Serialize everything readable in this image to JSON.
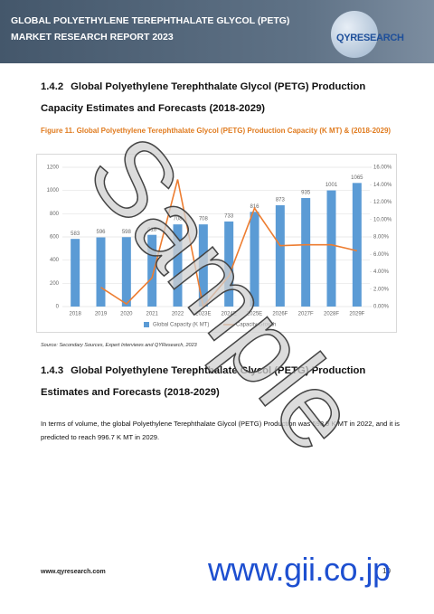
{
  "header": {
    "title": "GLOBAL POLYETHYLENE TEREPHTHALATE GLYCOL (PETG) MARKET RESEARCH REPORT 2023",
    "logo": "QYRESEARCH"
  },
  "sections": [
    {
      "number": "1.4.2",
      "title": "Global Polyethylene Terephthalate Glycol (PETG) Production Capacity Estimates and Forecasts (2018-2029)"
    },
    {
      "number": "1.4.3",
      "title": "Global Polyethylene Terephthalate Glycol (PETG) Production Estimates and Forecasts (2018-2029)"
    }
  ],
  "figure": {
    "caption": "Figure 11.  Global Polyethylene Terephthalate Glycol (PETG) Production Capacity (K MT) & (2018-2029)",
    "source": "Source: Secondary Sources, Expert Interviews and QYResearch, 2023"
  },
  "chart_data": {
    "type": "bar",
    "categories": [
      "2018",
      "2019",
      "2020",
      "2021",
      "2022",
      "2023E",
      "2024E",
      "2025E",
      "2026F",
      "2027F",
      "2028F",
      "2029F"
    ],
    "series": [
      {
        "name": "Global Capacity (K MT)",
        "type": "bar",
        "color": "#5b9bd5",
        "values": [
          583,
          596,
          598,
          618,
          708,
          708,
          733,
          816,
          873,
          935,
          1001,
          1065
        ]
      },
      {
        "name": "Capacity Growth",
        "type": "line",
        "axis": "y2",
        "color": "#ed7d31",
        "values": [
          null,
          2.2,
          0.3,
          3.3,
          14.6,
          0,
          3.5,
          11.3,
          7.0,
          7.1,
          7.1,
          6.4
        ]
      }
    ],
    "ylim": [
      0,
      1200
    ],
    "yticks": [
      0,
      200,
      400,
      600,
      800,
      1000,
      1200
    ],
    "y2lim": [
      0,
      16
    ],
    "y2ticks": [
      {
        "value": 0,
        "label": "0.00%"
      },
      {
        "value": 2,
        "label": "2.00%"
      },
      {
        "value": 4,
        "label": "4.00%"
      },
      {
        "value": 6,
        "label": "6.00%"
      },
      {
        "value": 8,
        "label": "8.00%"
      },
      {
        "value": 10,
        "label": "10.00%"
      },
      {
        "value": 12,
        "label": "12.00%"
      },
      {
        "value": 14,
        "label": "14.00%"
      },
      {
        "value": 16,
        "label": "16.00%"
      }
    ],
    "grid": true,
    "legend": "bottom"
  },
  "paragraph": "In terms of volume, the global Polyethylene Terephthalate Glycol (PETG) Production was 598.9 K MT in 2022, and it is predicted to reach 996.7 K MT in 2029.",
  "footer": {
    "website": "www.qyresearch.com",
    "page": "10",
    "brand": "www.gii.co.jp"
  },
  "watermark": "Sample"
}
